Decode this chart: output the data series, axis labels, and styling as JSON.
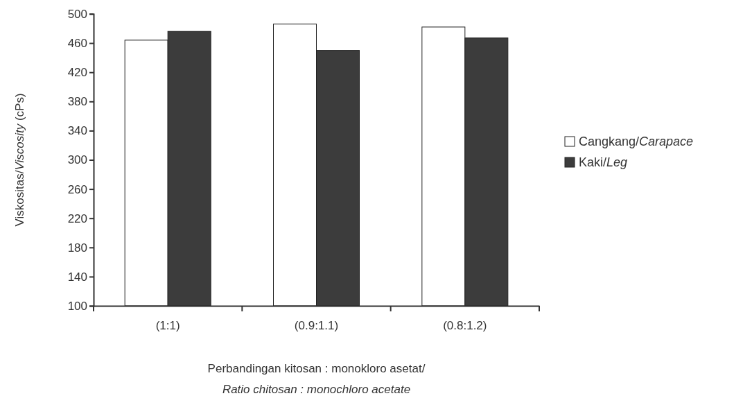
{
  "chart_data": {
    "type": "bar",
    "categories": [
      "(1:1)",
      "(0.9:1.1)",
      "(0.8:1.2)"
    ],
    "series": [
      {
        "name": "Cangkang/Carapace",
        "color": "#ffffff",
        "values": [
          464,
          486,
          482
        ]
      },
      {
        "name": "Kaki/Leg",
        "color": "#3c3c3c",
        "values": [
          476,
          450,
          467
        ]
      }
    ],
    "ylabel": "Viskositas/Viscosity (cPs)",
    "xlabel": "Perbandingan kitosan : monokloro asetat/\nRatio chitosan : monochloro acetate",
    "ylim": [
      100,
      500
    ],
    "yticks": [
      100,
      140,
      180,
      220,
      260,
      300,
      340,
      380,
      420,
      460,
      500
    ],
    "legend": "right"
  }
}
